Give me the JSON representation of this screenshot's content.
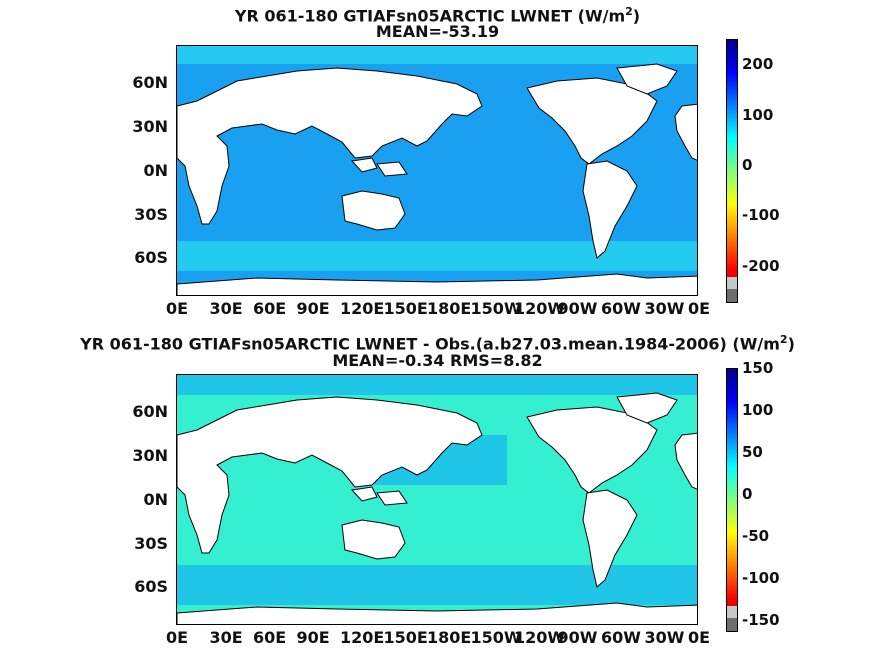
{
  "panels": [
    {
      "title_line1": "YR 061-180 GTIAFsn05ARCTIC  LWNET (W/m",
      "title_sup": "2",
      "title_close": ")",
      "title_line2": "MEAN=-53.19",
      "colorbar_ticks": [
        "200",
        "100",
        "0",
        "-100",
        "-200"
      ],
      "ocean_color": "#1aa0f0",
      "accent_color": "#2ad8f0"
    },
    {
      "title_line1": "YR 061-180 GTIAFsn05ARCTIC LWNET - Obs.(a.b27.03.mean.1984-2006) (W/m",
      "title_sup": "2",
      "title_close": ")",
      "title_line2": "MEAN=-0.34 RMS=8.82",
      "colorbar_ticks": [
        "150",
        "100",
        "50",
        "0",
        "-50",
        "-100",
        "-150"
      ],
      "ocean_color": "#35f0d0",
      "accent_color": "#1ab8f0"
    }
  ],
  "lat_labels": [
    "60N",
    "30N",
    "0N",
    "30S",
    "60S"
  ],
  "lon_labels": [
    "0E",
    "30E",
    "60E",
    "90E",
    "120E",
    "150E",
    "180E",
    "150W",
    "120W",
    "90W",
    "60W",
    "30W",
    "0E"
  ],
  "colors": {
    "land": "#ffffff",
    "coast": "#000000",
    "colorbar_gradient": [
      "#00008f",
      "#0000ff",
      "#0080ff",
      "#00ffff",
      "#80ff80",
      "#ffff00",
      "#ff8000",
      "#ff0000",
      "#a00000"
    ],
    "undefined_gray": "#c8c8c8",
    "missing_dark": "#6e6e6e"
  }
}
